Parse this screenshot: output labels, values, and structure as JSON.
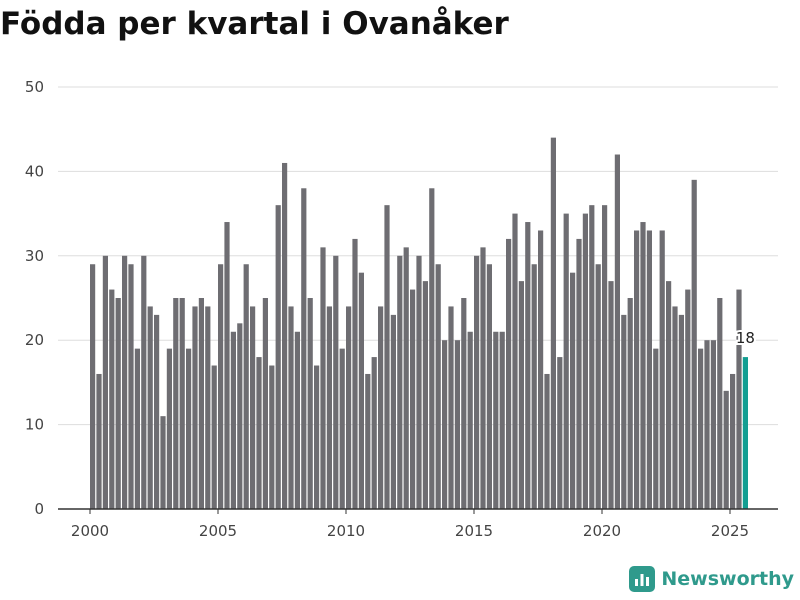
{
  "chart_data": {
    "type": "bar",
    "title": "Födda per kvartal i Ovanåker",
    "xlabel": "",
    "ylabel": "",
    "ylim": [
      0,
      50
    ],
    "y_ticks": [
      "0",
      "10",
      "20",
      "30",
      "40",
      "50"
    ],
    "x_ticks": [
      "2000",
      "2005",
      "2010",
      "2015",
      "2020",
      "2025"
    ],
    "grid": true,
    "start_period": "2000 Q1",
    "series": [
      {
        "name": "Födda",
        "values": [
          29,
          16,
          30,
          26,
          25,
          30,
          29,
          19,
          30,
          24,
          23,
          11,
          19,
          25,
          25,
          19,
          24,
          25,
          24,
          17,
          29,
          34,
          21,
          22,
          29,
          24,
          18,
          25,
          17,
          36,
          41,
          24,
          21,
          38,
          25,
          17,
          31,
          24,
          30,
          19,
          24,
          32,
          28,
          16,
          18,
          24,
          36,
          23,
          30,
          31,
          26,
          30,
          27,
          38,
          29,
          20,
          24,
          20,
          25,
          21,
          30,
          31,
          29,
          21,
          21,
          32,
          35,
          27,
          34,
          29,
          33,
          16,
          44,
          18,
          35,
          28,
          32,
          35,
          36,
          29,
          36,
          27,
          42,
          23,
          25,
          33,
          34,
          33,
          19,
          33,
          27,
          24,
          23,
          26,
          39,
          19,
          20,
          20,
          25,
          14,
          16,
          26,
          18
        ]
      }
    ],
    "highlight": {
      "index": 102,
      "label": "18"
    }
  },
  "colors": {
    "bar": "#6e6d72",
    "highlight": "#139e92",
    "grid": "#dddddd",
    "axis": "#333333",
    "brand": "#2f9a8c"
  },
  "brand": {
    "name": "Newsworthy",
    "icon": "bar-chart-icon"
  }
}
